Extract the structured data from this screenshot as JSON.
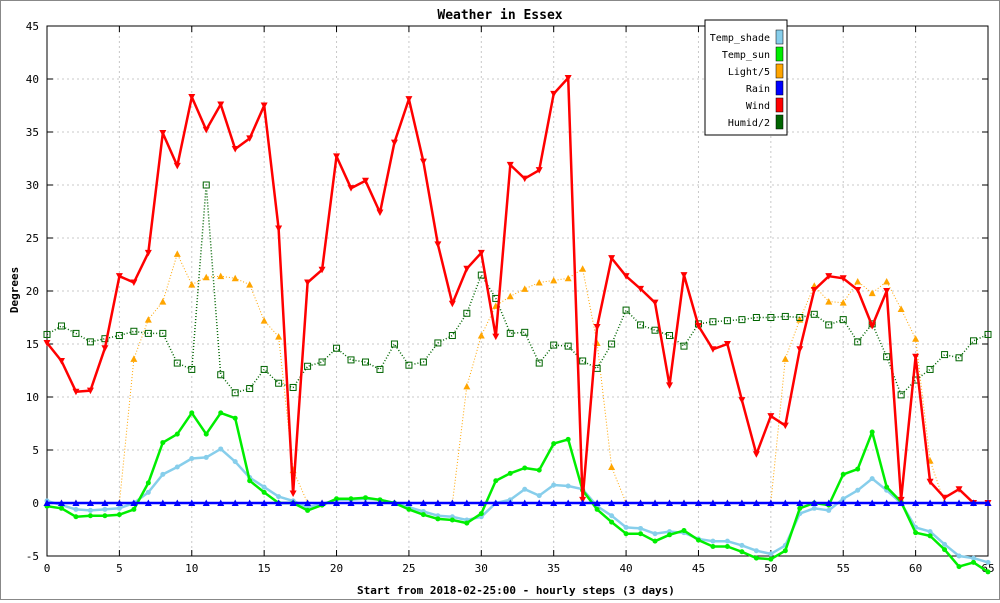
{
  "chart_data": {
    "type": "line",
    "title": "Weather in Essex",
    "xlabel": "Start from 2018-02-25:00 - hourly steps (3 days)",
    "ylabel": "Degrees",
    "xlim": [
      0,
      65
    ],
    "ylim": [
      -5,
      45
    ],
    "x_ticks": [
      0,
      5,
      10,
      15,
      20,
      25,
      30,
      35,
      40,
      45,
      50,
      55,
      60,
      65
    ],
    "x_tick_labels": [
      "0",
      "5",
      "10",
      "15",
      "20",
      "25",
      "30",
      "35",
      "40",
      "45",
      "50",
      "55",
      "60",
      "65"
    ],
    "y_ticks": [
      -5,
      0,
      5,
      10,
      15,
      20,
      25,
      30,
      35,
      40,
      45
    ],
    "y_tick_labels": [
      "-5",
      "0",
      "5",
      "10",
      "15",
      "20",
      "25",
      "30",
      "35",
      "40",
      "45"
    ],
    "grid": true,
    "legend_position": "top-right",
    "series": [
      {
        "name": "Temp_shade",
        "color": "#87ceeb",
        "marker": "circle",
        "values": [
          0.2,
          -0.2,
          -0.6,
          -0.7,
          -0.6,
          -0.5,
          0.0,
          1.0,
          2.7,
          3.4,
          4.2,
          4.3,
          5.1,
          3.9,
          2.4,
          1.5,
          0.6,
          0.2,
          -0.4,
          -0.1,
          0.3,
          0.3,
          0.4,
          0.3,
          0.0,
          -0.4,
          -0.8,
          -1.2,
          -1.3,
          -1.6,
          -1.3,
          0.0,
          0.3,
          1.3,
          0.7,
          1.7,
          1.6,
          1.3,
          -0.3,
          -1.2,
          -2.3,
          -2.4,
          -2.9,
          -2.7,
          -2.8,
          -3.4,
          -3.6,
          -3.6,
          -4.0,
          -4.5,
          -4.8,
          -4.0,
          -1.0,
          -0.5,
          -0.7,
          0.4,
          1.2,
          2.3,
          1.2,
          0.0,
          -2.3,
          -2.7,
          -3.9,
          -5.0,
          -5.2,
          -5.6
        ]
      },
      {
        "name": "Temp_sun",
        "color": "#00ee00",
        "marker": "circle",
        "values": [
          -0.3,
          -0.5,
          -1.3,
          -1.2,
          -1.2,
          -1.1,
          -0.6,
          1.9,
          5.7,
          6.5,
          8.5,
          6.5,
          8.5,
          8.0,
          2.1,
          1.0,
          0.0,
          0.0,
          -0.7,
          -0.2,
          0.4,
          0.4,
          0.5,
          0.3,
          0.0,
          -0.6,
          -1.1,
          -1.5,
          -1.6,
          -1.9,
          -1.0,
          2.1,
          2.8,
          3.3,
          3.1,
          5.6,
          6.0,
          1.2,
          -0.6,
          -1.8,
          -2.9,
          -2.9,
          -3.6,
          -3.0,
          -2.6,
          -3.5,
          -4.1,
          -4.1,
          -4.6,
          -5.2,
          -5.3,
          -4.5,
          -0.5,
          0.0,
          -0.2,
          2.7,
          3.2,
          6.7,
          1.5,
          0.1,
          -2.8,
          -3.1,
          -4.4,
          -6.0,
          -5.6,
          -6.5
        ]
      },
      {
        "name": "Light/5",
        "color": "#ffa500",
        "marker": "triangle-up",
        "values": [
          0,
          0,
          0,
          0,
          0,
          0,
          13.6,
          17.3,
          19.0,
          23.5,
          20.6,
          21.3,
          21.4,
          21.2,
          20.6,
          17.2,
          15.7,
          3.1,
          0,
          0,
          0,
          0,
          0,
          0,
          0,
          0,
          0,
          0,
          0,
          11.0,
          15.8,
          18.6,
          19.5,
          20.2,
          20.8,
          21.0,
          21.2,
          22.1,
          15.1,
          3.4,
          0,
          0,
          0,
          0,
          0,
          0,
          0,
          0,
          0,
          0,
          0,
          13.6,
          17.3,
          20.5,
          19.0,
          18.9,
          20.9,
          19.8,
          20.9,
          18.3,
          15.5,
          4.0,
          0,
          0,
          0,
          0
        ]
      },
      {
        "name": "Rain",
        "color": "#0000ff",
        "marker": "triangle-up",
        "values": [
          0,
          0,
          0,
          0,
          0,
          0,
          0,
          0,
          0,
          0,
          0,
          0,
          0,
          0,
          0,
          0,
          0,
          0,
          0,
          0,
          0,
          0,
          0,
          0,
          0,
          0,
          0,
          0,
          0,
          0,
          0,
          0,
          0,
          0,
          0,
          0,
          0,
          0,
          0,
          0,
          0,
          0,
          0,
          0,
          0,
          0,
          0,
          0,
          0,
          0,
          0,
          0,
          0,
          0,
          0,
          0,
          0,
          0,
          0,
          0,
          0,
          0,
          0,
          0,
          0,
          0
        ]
      },
      {
        "name": "Wind",
        "color": "#ff0000",
        "marker": "triangle-down",
        "values": [
          15.1,
          13.4,
          10.5,
          10.6,
          14.6,
          21.4,
          20.8,
          23.6,
          34.9,
          31.8,
          38.3,
          35.2,
          37.6,
          33.4,
          34.4,
          37.5,
          25.9,
          0.9,
          20.8,
          22.0,
          32.7,
          29.7,
          30.4,
          27.4,
          34.0,
          38.1,
          32.2,
          24.4,
          18.8,
          22.1,
          23.6,
          15.7,
          31.9,
          30.6,
          31.4,
          38.6,
          40.1,
          0.3,
          16.6,
          23.1,
          21.4,
          20.2,
          18.9,
          11.1,
          21.5,
          16.7,
          14.5,
          15.0,
          9.7,
          4.6,
          8.2,
          7.3,
          14.5,
          20.1,
          21.4,
          21.2,
          20.1,
          16.7,
          20.0,
          0.3,
          13.8,
          2.0,
          0.5,
          1.3,
          0.0,
          0.0
        ]
      },
      {
        "name": "Humid/2",
        "color": "#006400",
        "marker": "square",
        "values": [
          15.9,
          16.7,
          16.0,
          15.2,
          15.5,
          15.8,
          16.2,
          16.0,
          16.0,
          13.2,
          12.6,
          30.0,
          12.1,
          10.4,
          10.8,
          12.6,
          11.3,
          10.9,
          12.9,
          13.3,
          14.6,
          13.5,
          13.3,
          12.6,
          15.0,
          13.0,
          13.3,
          15.1,
          15.8,
          17.9,
          21.5,
          19.3,
          16.0,
          16.1,
          13.2,
          14.9,
          14.8,
          13.4,
          12.7,
          15.0,
          18.2,
          16.8,
          16.3,
          15.8,
          14.8,
          16.9,
          17.1,
          17.2,
          17.3,
          17.5,
          17.5,
          17.6,
          17.5,
          17.8,
          16.8,
          17.3,
          15.2,
          16.9,
          13.8,
          10.2,
          11.6,
          12.6,
          14.0,
          13.7,
          15.3,
          15.9
        ]
      }
    ]
  }
}
